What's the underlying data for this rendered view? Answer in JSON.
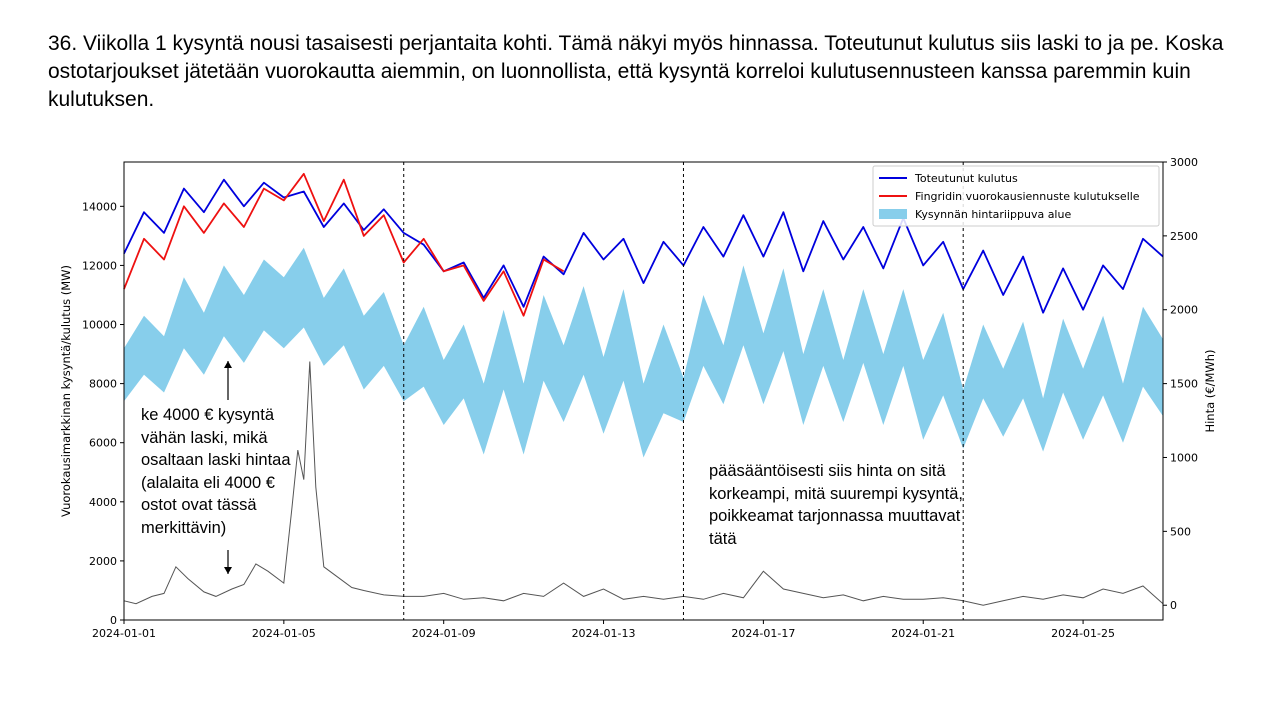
{
  "slide": {
    "title": "36. Viikolla 1 kysyntä nousi tasaisesti perjantaita kohti. Tämä näkyi myös hinnassa. Toteutunut kulutus siis laski to ja pe. Koska ostotarjoukset jätetään vuorokautta aiemmin, on luonnollista, että kysyntä korreloi kulutusennusteen kanssa paremmin kuin kulutuksen."
  },
  "annotations": {
    "left_note": "ke 4000 € kysyntä vähän laski, mikä osaltaan laski hintaa (alalaita eli 4000 € ostot ovat tässä merkittävin)",
    "right_note": "pääsääntöisesti siis hinta on sitä korkeampi, mitä suurempi kysyntä, poikkeamat tarjonnassa muuttavat tätä"
  },
  "chart_data": {
    "type": "line",
    "xlabel": "",
    "ylabel": "Vuorokausimarkkinan kysyntä/kulutus (MW)",
    "y2label": "Hinta (€/MWh)",
    "xlim": [
      "2024-01-01",
      "2024-01-27"
    ],
    "ylim": [
      0,
      15500
    ],
    "y2lim": [
      -100,
      3000
    ],
    "xticks": [
      "2024-01-01",
      "2024-01-05",
      "2024-01-09",
      "2024-01-13",
      "2024-01-17",
      "2024-01-21",
      "2024-01-25"
    ],
    "yticks": [
      0,
      2000,
      4000,
      6000,
      8000,
      10000,
      12000,
      14000
    ],
    "y2ticks": [
      0,
      500,
      1000,
      1500,
      2000,
      2500,
      3000
    ],
    "vlines": [
      "2024-01-08",
      "2024-01-15",
      "2024-01-22"
    ],
    "legend_position": "top-right",
    "legend": [
      {
        "label": "Toteutunut kulutus",
        "color": "#0000dd",
        "kind": "line"
      },
      {
        "label": "Fingridin vuorokausiennuste kulutukselle",
        "color": "#ee1111",
        "kind": "line"
      },
      {
        "label": "Kysynnän hintariippuva alue",
        "color": "#87ceeb",
        "kind": "patch"
      }
    ],
    "series": [
      {
        "name": "Toteutunut kulutus",
        "color": "#0000dd",
        "axis": "left",
        "x": [
          "2024-01-01",
          "2024-01-01.5",
          "2024-01-02",
          "2024-01-02.5",
          "2024-01-03",
          "2024-01-03.5",
          "2024-01-04",
          "2024-01-04.5",
          "2024-01-05",
          "2024-01-05.5",
          "2024-01-06",
          "2024-01-06.5",
          "2024-01-07",
          "2024-01-07.5",
          "2024-01-08",
          "2024-01-08.5",
          "2024-01-09",
          "2024-01-09.5",
          "2024-01-10",
          "2024-01-10.5",
          "2024-01-11",
          "2024-01-11.5",
          "2024-01-12",
          "2024-01-12.5",
          "2024-01-13",
          "2024-01-13.5",
          "2024-01-14",
          "2024-01-14.5",
          "2024-01-15",
          "2024-01-15.5",
          "2024-01-16",
          "2024-01-16.5",
          "2024-01-17",
          "2024-01-17.5",
          "2024-01-18",
          "2024-01-18.5",
          "2024-01-19",
          "2024-01-19.5",
          "2024-01-20",
          "2024-01-20.5",
          "2024-01-21",
          "2024-01-21.5",
          "2024-01-22",
          "2024-01-22.5",
          "2024-01-23",
          "2024-01-23.5",
          "2024-01-24",
          "2024-01-24.5",
          "2024-01-25",
          "2024-01-25.5",
          "2024-01-26",
          "2024-01-26.5",
          "2024-01-27"
        ],
        "values": [
          12400,
          13800,
          13100,
          14600,
          13800,
          14900,
          14000,
          14800,
          14300,
          14500,
          13300,
          14100,
          13200,
          13900,
          13100,
          12700,
          11800,
          12100,
          10900,
          12000,
          10600,
          12300,
          11700,
          13100,
          12200,
          12900,
          11400,
          12800,
          12000,
          13300,
          12300,
          13700,
          12300,
          13800,
          11800,
          13500,
          12200,
          13300,
          11900,
          13600,
          12000,
          12800,
          11200,
          12500,
          11000,
          12300,
          10400,
          11900,
          10500,
          12000,
          11200,
          12900,
          12300
        ]
      },
      {
        "name": "Fingridin vuorokausiennuste kulutukselle",
        "color": "#ee1111",
        "axis": "left",
        "x": [
          "2024-01-01",
          "2024-01-01.5",
          "2024-01-02",
          "2024-01-02.5",
          "2024-01-03",
          "2024-01-03.5",
          "2024-01-04",
          "2024-01-04.5",
          "2024-01-05",
          "2024-01-05.5",
          "2024-01-06",
          "2024-01-06.5",
          "2024-01-07",
          "2024-01-07.5",
          "2024-01-08",
          "2024-01-08.5",
          "2024-01-09",
          "2024-01-09.5",
          "2024-01-10",
          "2024-01-10.5",
          "2024-01-11",
          "2024-01-11.5",
          "2024-01-12"
        ],
        "values": [
          11200,
          12900,
          12200,
          14000,
          13100,
          14100,
          13300,
          14600,
          14200,
          15100,
          13500,
          14900,
          13000,
          13700,
          12100,
          12900,
          11800,
          12000,
          10800,
          11800,
          10300,
          12200,
          11800
        ]
      },
      {
        "name": "Kysynnän hintariippuva alue (yläraja)",
        "color": "#87ceeb",
        "axis": "left",
        "x": [
          "2024-01-01",
          "2024-01-01.5",
          "2024-01-02",
          "2024-01-02.5",
          "2024-01-03",
          "2024-01-03.5",
          "2024-01-04",
          "2024-01-04.5",
          "2024-01-05",
          "2024-01-05.5",
          "2024-01-06",
          "2024-01-06.5",
          "2024-01-07",
          "2024-01-07.5",
          "2024-01-08",
          "2024-01-08.5",
          "2024-01-09",
          "2024-01-09.5",
          "2024-01-10",
          "2024-01-10.5",
          "2024-01-11",
          "2024-01-11.5",
          "2024-01-12",
          "2024-01-12.5",
          "2024-01-13",
          "2024-01-13.5",
          "2024-01-14",
          "2024-01-14.5",
          "2024-01-15",
          "2024-01-15.5",
          "2024-01-16",
          "2024-01-16.5",
          "2024-01-17",
          "2024-01-17.5",
          "2024-01-18",
          "2024-01-18.5",
          "2024-01-19",
          "2024-01-19.5",
          "2024-01-20",
          "2024-01-20.5",
          "2024-01-21",
          "2024-01-21.5",
          "2024-01-22",
          "2024-01-22.5",
          "2024-01-23",
          "2024-01-23.5",
          "2024-01-24",
          "2024-01-24.5",
          "2024-01-25",
          "2024-01-25.5",
          "2024-01-26",
          "2024-01-26.5",
          "2024-01-27"
        ],
        "values": [
          9200,
          10300,
          9600,
          11600,
          10400,
          12000,
          11000,
          12200,
          11600,
          12600,
          10900,
          11900,
          10300,
          11100,
          9300,
          10600,
          8800,
          10000,
          8000,
          10500,
          8000,
          11000,
          9300,
          11300,
          8900,
          11200,
          8000,
          10000,
          8200,
          11000,
          9300,
          12000,
          9700,
          11900,
          9000,
          11200,
          8800,
          11200,
          9000,
          11200,
          8800,
          10400,
          7800,
          10000,
          8500,
          10100,
          7500,
          10200,
          8500,
          10300,
          8000,
          10600,
          9500
        ]
      },
      {
        "name": "Kysynnän hintariippuva alue (alaraja)",
        "color": "#87ceeb",
        "axis": "left",
        "x": [
          "2024-01-01",
          "2024-01-01.5",
          "2024-01-02",
          "2024-01-02.5",
          "2024-01-03",
          "2024-01-03.5",
          "2024-01-04",
          "2024-01-04.5",
          "2024-01-05",
          "2024-01-05.5",
          "2024-01-06",
          "2024-01-06.5",
          "2024-01-07",
          "2024-01-07.5",
          "2024-01-08",
          "2024-01-08.5",
          "2024-01-09",
          "2024-01-09.5",
          "2024-01-10",
          "2024-01-10.5",
          "2024-01-11",
          "2024-01-11.5",
          "2024-01-12",
          "2024-01-12.5",
          "2024-01-13",
          "2024-01-13.5",
          "2024-01-14",
          "2024-01-14.5",
          "2024-01-15",
          "2024-01-15.5",
          "2024-01-16",
          "2024-01-16.5",
          "2024-01-17",
          "2024-01-17.5",
          "2024-01-18",
          "2024-01-18.5",
          "2024-01-19",
          "2024-01-19.5",
          "2024-01-20",
          "2024-01-20.5",
          "2024-01-21",
          "2024-01-21.5",
          "2024-01-22",
          "2024-01-22.5",
          "2024-01-23",
          "2024-01-23.5",
          "2024-01-24",
          "2024-01-24.5",
          "2024-01-25",
          "2024-01-25.5",
          "2024-01-26",
          "2024-01-26.5",
          "2024-01-27"
        ],
        "values": [
          7400,
          8300,
          7700,
          9200,
          8300,
          9600,
          8700,
          9800,
          9200,
          9900,
          8600,
          9300,
          7800,
          8600,
          7400,
          7900,
          6600,
          7500,
          5600,
          7800,
          5600,
          8100,
          6700,
          8300,
          6300,
          8100,
          5500,
          7000,
          6700,
          8600,
          7300,
          9300,
          7300,
          9100,
          6600,
          8600,
          6700,
          8700,
          6600,
          8600,
          6100,
          7600,
          5800,
          7500,
          6200,
          7500,
          5700,
          7700,
          6100,
          7600,
          6000,
          7900,
          6900
        ]
      },
      {
        "name": "Hinta",
        "color": "#555555",
        "axis": "right",
        "x": [
          "2024-01-01",
          "2024-01-01.3",
          "2024-01-01.7",
          "2024-01-02",
          "2024-01-02.3",
          "2024-01-02.6",
          "2024-01-03",
          "2024-01-03.3",
          "2024-01-03.7",
          "2024-01-04",
          "2024-01-04.3",
          "2024-01-04.6",
          "2024-01-05",
          "2024-01-05.2",
          "2024-01-05.35",
          "2024-01-05.5",
          "2024-01-05.65",
          "2024-01-05.8",
          "2024-01-06",
          "2024-01-06.3",
          "2024-01-06.7",
          "2024-01-07",
          "2024-01-07.5",
          "2024-01-08",
          "2024-01-08.5",
          "2024-01-09",
          "2024-01-09.5",
          "2024-01-10",
          "2024-01-10.5",
          "2024-01-11",
          "2024-01-11.5",
          "2024-01-12",
          "2024-01-12.5",
          "2024-01-13",
          "2024-01-13.5",
          "2024-01-14",
          "2024-01-14.5",
          "2024-01-15",
          "2024-01-15.5",
          "2024-01-16",
          "2024-01-16.5",
          "2024-01-17",
          "2024-01-17.5",
          "2024-01-18",
          "2024-01-18.5",
          "2024-01-19",
          "2024-01-19.5",
          "2024-01-20",
          "2024-01-20.5",
          "2024-01-21",
          "2024-01-21.5",
          "2024-01-22",
          "2024-01-22.5",
          "2024-01-23",
          "2024-01-23.5",
          "2024-01-24",
          "2024-01-24.5",
          "2024-01-25",
          "2024-01-25.5",
          "2024-01-26",
          "2024-01-26.5",
          "2024-01-27"
        ],
        "values": [
          30,
          10,
          60,
          80,
          260,
          180,
          90,
          60,
          110,
          140,
          280,
          230,
          150,
          650,
          1050,
          850,
          1650,
          800,
          260,
          200,
          120,
          100,
          70,
          60,
          60,
          80,
          40,
          50,
          30,
          80,
          60,
          150,
          60,
          110,
          40,
          60,
          40,
          60,
          40,
          80,
          50,
          230,
          110,
          80,
          50,
          70,
          30,
          60,
          40,
          40,
          50,
          30,
          0,
          30,
          60,
          40,
          70,
          50,
          110,
          80,
          130,
          10
        ]
      }
    ]
  }
}
